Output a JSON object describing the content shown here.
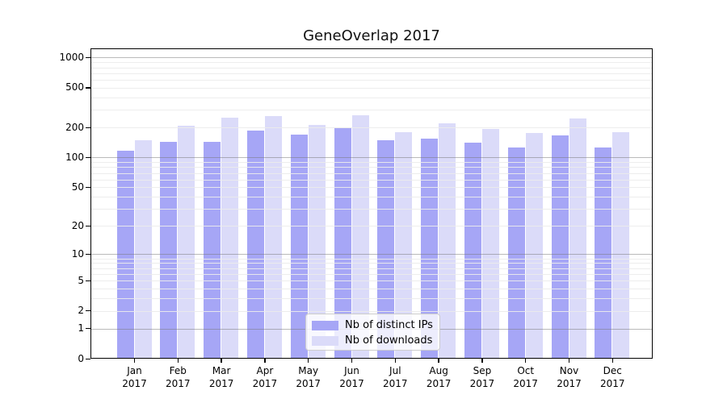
{
  "chart_data": {
    "type": "bar",
    "title": "GeneOverlap 2017",
    "categories": [
      "Jan",
      "Feb",
      "Mar",
      "Apr",
      "May",
      "Jun",
      "Jul",
      "Aug",
      "Sep",
      "Oct",
      "Nov",
      "Dec"
    ],
    "category_year": "2017",
    "series": [
      {
        "name": "Nb of distinct IPs",
        "color": "#a6a6f6",
        "values": [
          117,
          145,
          143,
          188,
          170,
          197,
          150,
          155,
          142,
          125,
          168,
          127
        ]
      },
      {
        "name": "Nb of downloads",
        "color": "#dbdbf9",
        "values": [
          148,
          210,
          253,
          262,
          214,
          265,
          180,
          220,
          193,
          176,
          245,
          180
        ]
      }
    ],
    "y_axis": {
      "scale": "log1p",
      "ticks": [
        1000,
        500,
        200,
        100,
        50,
        20,
        10,
        5,
        2,
        1,
        0
      ],
      "range": [
        0,
        1235
      ],
      "major_gridlines": [
        1,
        10,
        100,
        1000
      ],
      "minor_gridlines": [
        2,
        3,
        4,
        5,
        6,
        7,
        8,
        9,
        20,
        30,
        40,
        50,
        60,
        70,
        80,
        90,
        200,
        300,
        400,
        500,
        600,
        700,
        800,
        900
      ]
    },
    "grid": true,
    "legend": {
      "position": "inside-bottom-center"
    }
  },
  "colors": {
    "background": "#ffffff",
    "spine": "#000000",
    "text": "#000000",
    "bar_distinct_ips": "#a6a6f6",
    "bar_downloads": "#dbdbf9"
  }
}
